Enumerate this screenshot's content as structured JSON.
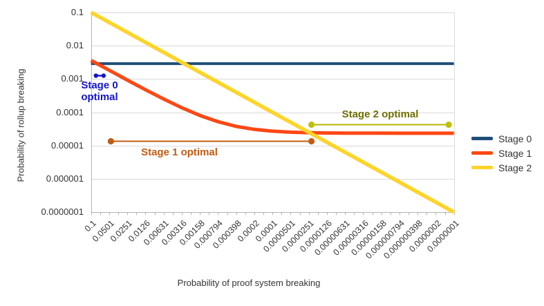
{
  "chart_data": {
    "type": "line",
    "title": "",
    "xlabel": "Probability of proof system breaking",
    "ylabel": "Probability of rollup breaking",
    "x_scale": "log-reversed",
    "y_scale": "log",
    "x_range": [
      0.1,
      1e-07
    ],
    "y_range": [
      1e-07,
      0.1
    ],
    "grid": "horizontal-decades",
    "legend_position": "right",
    "x_tick_labels": [
      "0.1",
      "0.0501",
      "0.0251",
      "0.0126",
      "0.00631",
      "0.00316",
      "0.00158",
      "0.000794",
      "0.000398",
      "0.0002",
      "0.0001",
      "0.0000501",
      "0.0000251",
      "0.0000126",
      "0.00000631",
      "0.00000316",
      "0.00000158",
      "0.000000794",
      "0.000000398",
      "0.0000002",
      "0.0000001"
    ],
    "y_tick_labels": [
      "0.1",
      "0.01",
      "0.001",
      "0.0001",
      "0.00001",
      "0.000001",
      "0.0000001"
    ],
    "style": {
      "grid_color": "#d9d9d9",
      "axis_color": "#b3b3b3",
      "tick_text_color": "#333333",
      "background": "#ffffff"
    },
    "series": [
      {
        "name": "Stage 0",
        "color": "#1f4e79",
        "width": 4,
        "x": [
          0.1,
          1e-07
        ],
        "y": [
          0.0029,
          0.0029
        ]
      },
      {
        "name": "Stage 1",
        "color": "#ff4713",
        "width": 5,
        "x": [
          0.1,
          0.0501,
          0.0251,
          0.0126,
          0.00631,
          0.00316,
          0.00158,
          0.000794,
          0.000398,
          0.0002,
          0.0001,
          5.01e-05,
          2.51e-05,
          1.26e-05,
          6.31e-06,
          3.16e-06,
          1.58e-06,
          7.94e-07,
          3.98e-07,
          2e-07,
          1e-07
        ],
        "y": [
          0.0036235,
          0.00183,
          0.000927,
          0.000477,
          0.000251,
          0.000137,
          8.04e-05,
          5.21e-05,
          3.78e-05,
          3.07e-05,
          2.71e-05,
          2.53e-05,
          2.44e-05,
          2.4e-05,
          2.37e-05,
          2.36e-05,
          2.36e-05,
          2.35e-05,
          2.35e-05,
          2.35e-05,
          2.35e-05
        ]
      },
      {
        "name": "Stage 2",
        "color": "#ffd428",
        "width": 5.5,
        "x": [
          0.1,
          1e-07
        ],
        "y": [
          0.1,
          1e-07
        ]
      }
    ],
    "annotations": [
      {
        "label": "Stage 0 optimal",
        "lines": [
          "Stage 0",
          "optimal"
        ],
        "text_color": "#1414cc",
        "line_color": "#1414cc",
        "dot_color": "#1414cc",
        "dot_r": 3.2,
        "line_width": 2.4,
        "x1": 0.083,
        "x2": 0.062,
        "y": 0.00126
      },
      {
        "label": "Stage 1 optimal",
        "text_color": "#c35c12",
        "line_color": "#c35c12",
        "dot_color": "#c35c12",
        "dot_r": 4.6,
        "line_width": 2,
        "x1": 0.047,
        "x2": 2.27e-05,
        "y": 1.35e-05
      },
      {
        "label": "Stage 2 optimal",
        "text_color": "#6f6f00",
        "line_color": "#b5b500",
        "dot_color": "#bfbf10",
        "dot_r": 4.6,
        "line_width": 2,
        "x1": 2.27e-05,
        "x2": 1.22e-07,
        "y": 4.25e-05
      }
    ],
    "legend": {
      "text_color": "#333333",
      "entries": [
        {
          "label": "Stage 0",
          "color": "#1f4e79"
        },
        {
          "label": "Stage 1",
          "color": "#ff4713"
        },
        {
          "label": "Stage 2",
          "color": "#ffd428"
        }
      ]
    }
  }
}
